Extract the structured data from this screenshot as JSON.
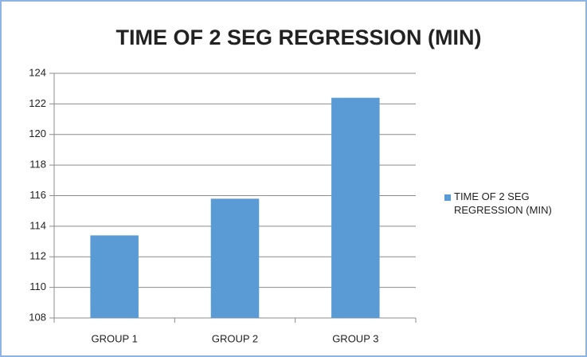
{
  "chart_data": {
    "type": "bar",
    "title": "TIME OF 2 SEG REGRESSION (MIN)",
    "categories": [
      "GROUP 1",
      "GROUP 2",
      "GROUP 3"
    ],
    "series": [
      {
        "name": "TIME OF 2 SEG REGRESSION (MIN)",
        "color": "#5b9bd5",
        "values": [
          113.4,
          115.8,
          122.4
        ]
      }
    ],
    "ylim": [
      108,
      124
    ],
    "yticks": [
      108,
      110,
      112,
      114,
      116,
      118,
      120,
      122,
      124
    ],
    "grid": true,
    "legend": "right"
  }
}
